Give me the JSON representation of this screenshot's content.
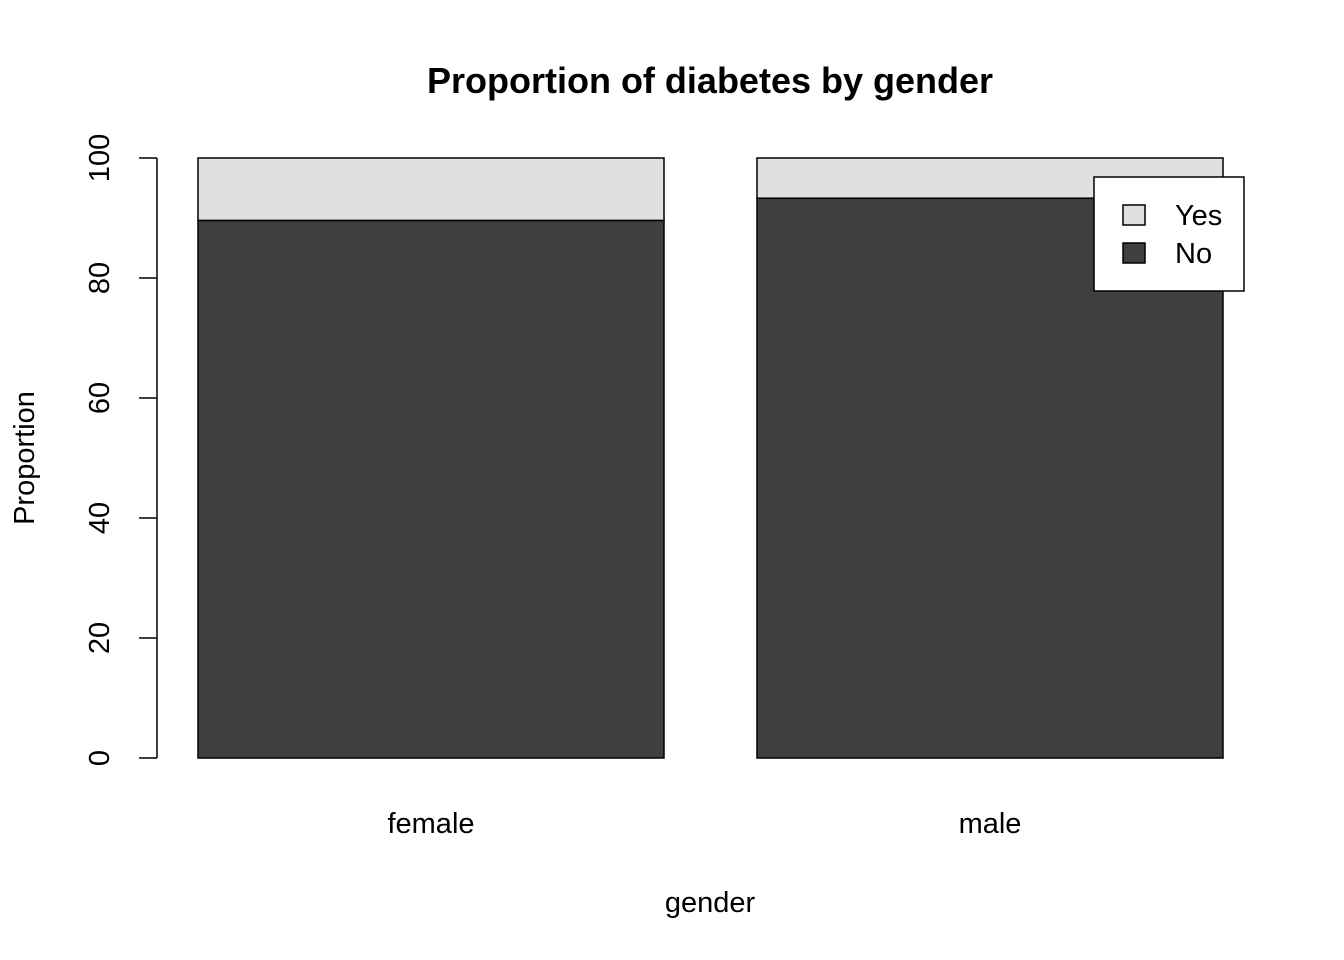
{
  "chart_data": {
    "type": "bar",
    "stacked": true,
    "title": "Proportion of diabetes by gender",
    "xlabel": "gender",
    "ylabel": "Proportion",
    "categories": [
      "female",
      "male"
    ],
    "series": [
      {
        "name": "No",
        "values": [
          89.6,
          93.3
        ],
        "color": "#3f3f3f"
      },
      {
        "name": "Yes",
        "values": [
          10.4,
          6.7
        ],
        "color": "#e0e0e0"
      }
    ],
    "ylim": [
      0,
      100
    ],
    "yticks": [
      0,
      20,
      40,
      60,
      80,
      100
    ],
    "grid": false,
    "legend": {
      "position": "top-right",
      "entries": [
        {
          "label": "Yes",
          "color": "#e0e0e0"
        },
        {
          "label": "No",
          "color": "#3f3f3f"
        }
      ]
    }
  }
}
